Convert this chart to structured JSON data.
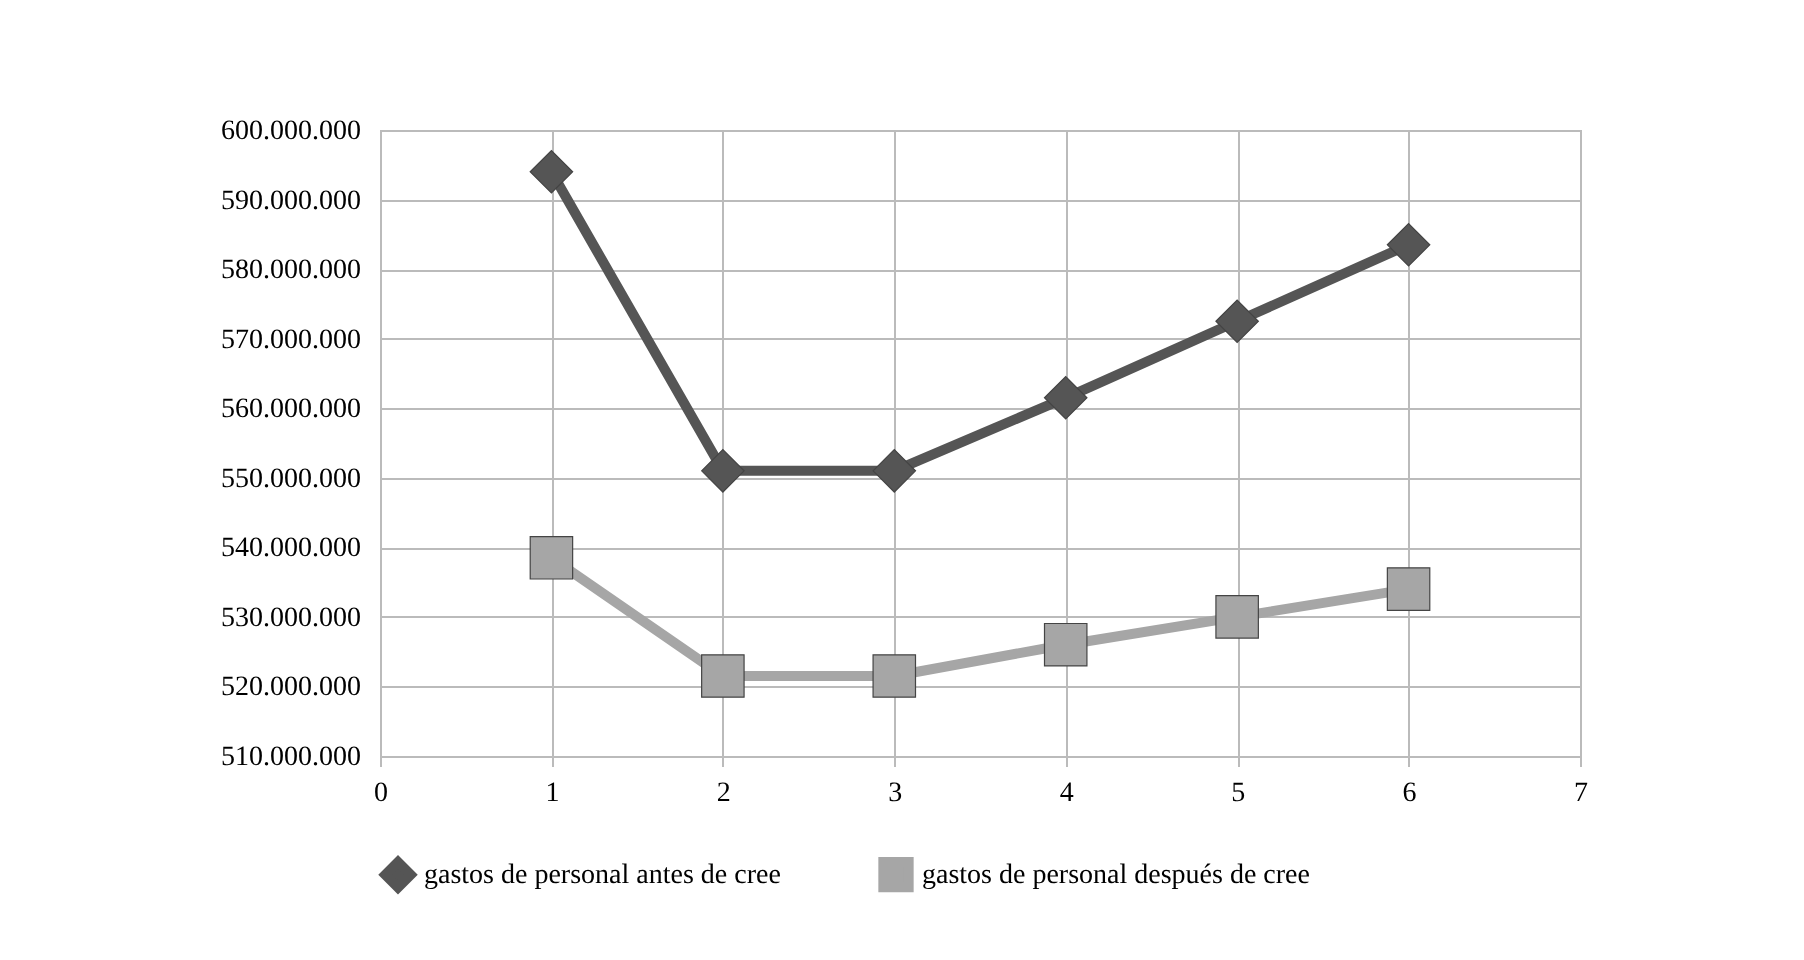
{
  "chart_data": {
    "type": "line",
    "x": [
      1,
      2,
      3,
      4,
      5,
      6
    ],
    "series": [
      {
        "name": "gastos de personal antes de cree",
        "color": "#555555",
        "marker": "diamond",
        "values": [
          594000000,
          551000000,
          551000000,
          561500000,
          572500000,
          583500000
        ]
      },
      {
        "name": "gastos de personal después de cree",
        "color": "#a6a6a6",
        "marker": "square",
        "values": [
          538500000,
          521500000,
          521500000,
          526000000,
          530000000,
          534000000
        ]
      }
    ],
    "xlim": [
      0,
      7
    ],
    "xticks": [
      {
        "value": 0,
        "label": "0"
      },
      {
        "value": 1,
        "label": "1"
      },
      {
        "value": 2,
        "label": "2"
      },
      {
        "value": 3,
        "label": "3"
      },
      {
        "value": 4,
        "label": "4"
      },
      {
        "value": 5,
        "label": "5"
      },
      {
        "value": 6,
        "label": "6"
      },
      {
        "value": 7,
        "label": "7"
      }
    ],
    "ylim": [
      510000000,
      600000000
    ],
    "yticks": [
      {
        "value": 510000000,
        "label": "510.000.000"
      },
      {
        "value": 520000000,
        "label": "520.000.000"
      },
      {
        "value": 530000000,
        "label": "530.000.000"
      },
      {
        "value": 540000000,
        "label": "540.000.000"
      },
      {
        "value": 550000000,
        "label": "550.000.000"
      },
      {
        "value": 560000000,
        "label": "560.000.000"
      },
      {
        "value": 570000000,
        "label": "570.000.000"
      },
      {
        "value": 580000000,
        "label": "580.000.000"
      },
      {
        "value": 590000000,
        "label": "590.000.000"
      },
      {
        "value": 600000000,
        "label": "600.000.000"
      }
    ],
    "grid": true,
    "legend": "bottom",
    "line_style": "solid"
  }
}
